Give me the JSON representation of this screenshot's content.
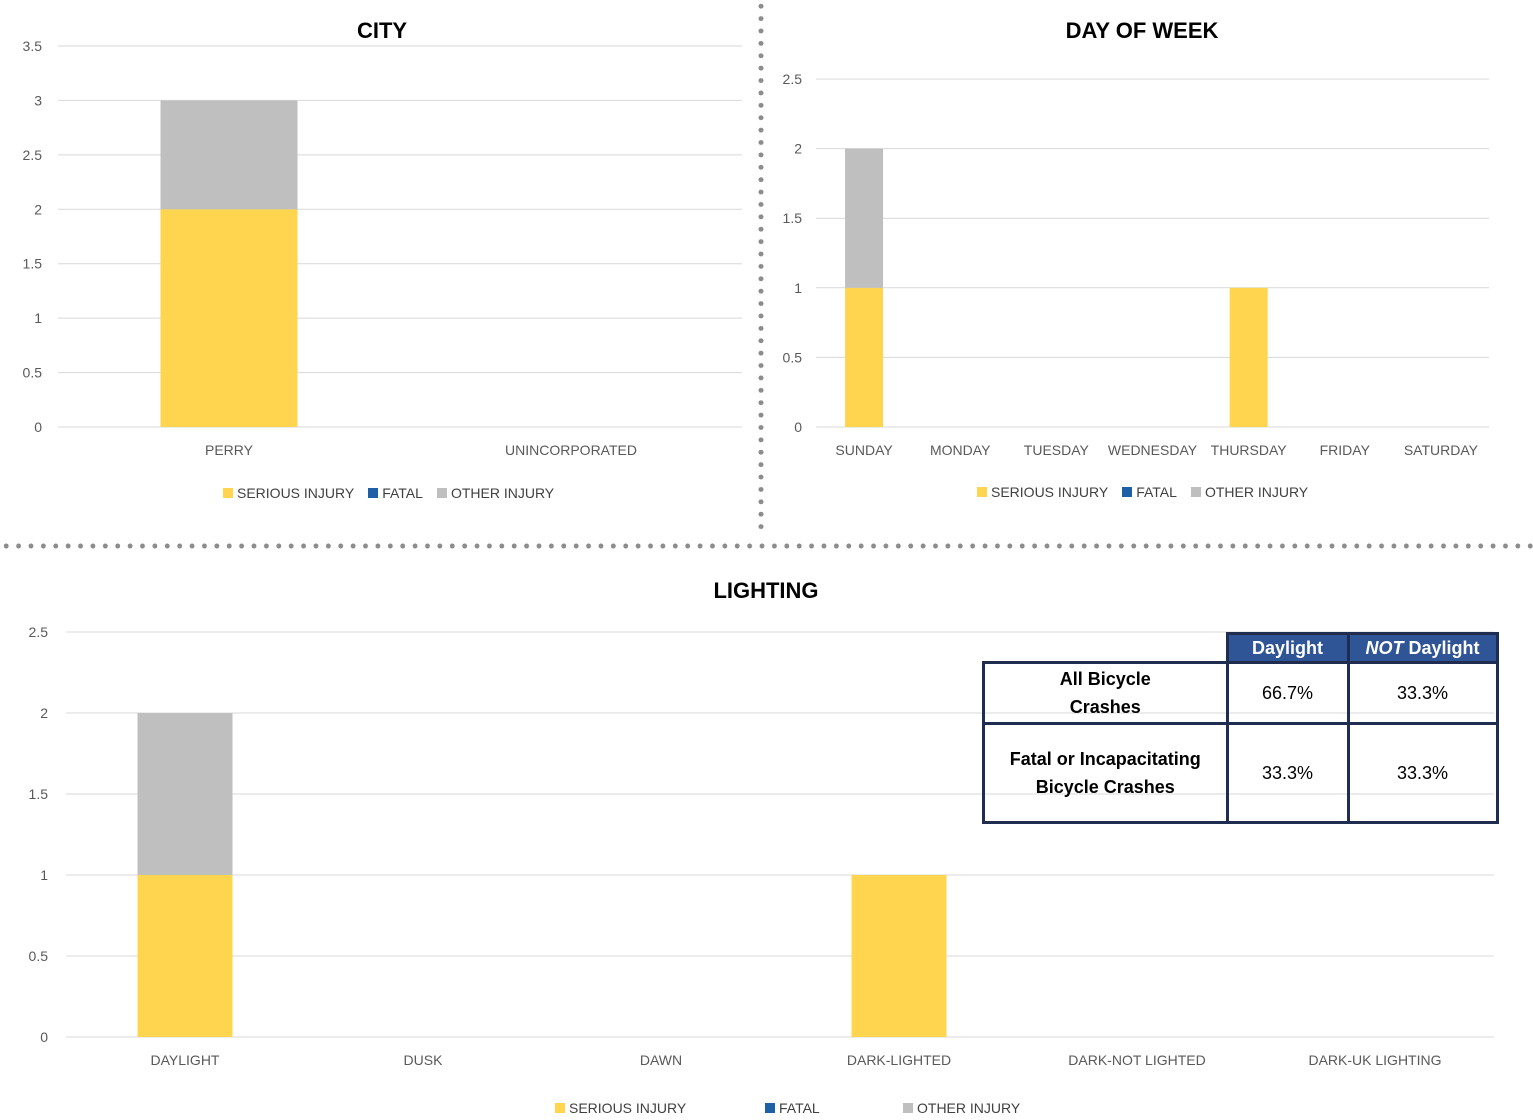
{
  "legend": {
    "serious": "SERIOUS INJURY",
    "fatal": "FATAL",
    "other": "OTHER INJURY"
  },
  "colors": {
    "serious": "#ffd54f",
    "fatal": "#1f5fa6",
    "other": "#bfbfbf",
    "grid": "#d9d9d9",
    "table_header": "#2f5597",
    "table_border": "#1f2d50"
  },
  "chart_data": [
    {
      "id": "city",
      "type": "bar",
      "stacked": true,
      "title": "CITY",
      "categories": [
        "PERRY",
        "UNINCORPORATED"
      ],
      "series": [
        {
          "name": "SERIOUS INJURY",
          "values": [
            2,
            0
          ]
        },
        {
          "name": "FATAL",
          "values": [
            0,
            0
          ]
        },
        {
          "name": "OTHER INJURY",
          "values": [
            1,
            0
          ]
        }
      ],
      "ylim": [
        0,
        3.5
      ],
      "yticks": [
        "0",
        "0.5",
        "1",
        "1.5",
        "2",
        "2.5",
        "3",
        "3.5"
      ],
      "grid": true,
      "legend": "bottom"
    },
    {
      "id": "dow",
      "type": "bar",
      "stacked": true,
      "title": "DAY OF WEEK",
      "categories": [
        "SUNDAY",
        "MONDAY",
        "TUESDAY",
        "WEDNESDAY",
        "THURSDAY",
        "FRIDAY",
        "SATURDAY"
      ],
      "series": [
        {
          "name": "SERIOUS INJURY",
          "values": [
            1,
            0,
            0,
            0,
            1,
            0,
            0
          ]
        },
        {
          "name": "FATAL",
          "values": [
            0,
            0,
            0,
            0,
            0,
            0,
            0
          ]
        },
        {
          "name": "OTHER INJURY",
          "values": [
            1,
            0,
            0,
            0,
            0,
            0,
            0
          ]
        }
      ],
      "ylim": [
        0,
        2.5
      ],
      "yticks": [
        "0",
        "0.5",
        "1",
        "1.5",
        "2",
        "2.5"
      ],
      "grid": true,
      "legend": "bottom"
    },
    {
      "id": "lighting",
      "type": "bar",
      "stacked": true,
      "title": "LIGHTING",
      "categories": [
        "DAYLIGHT",
        "DUSK",
        "DAWN",
        "DARK-LIGHTED",
        "DARK-NOT LIGHTED",
        "DARK-UK LIGHTING"
      ],
      "series": [
        {
          "name": "SERIOUS INJURY",
          "values": [
            1,
            0,
            0,
            1,
            0,
            0
          ]
        },
        {
          "name": "FATAL",
          "values": [
            0,
            0,
            0,
            0,
            0,
            0
          ]
        },
        {
          "name": "OTHER INJURY",
          "values": [
            1,
            0,
            0,
            0,
            0,
            0
          ]
        }
      ],
      "ylim": [
        0,
        2.5
      ],
      "yticks": [
        "0",
        "0.5",
        "1",
        "1.5",
        "2",
        "2.5"
      ],
      "grid": true,
      "legend": "bottom"
    }
  ],
  "table": {
    "header_daylight": "Daylight",
    "header_not": "NOT",
    "header_not_rest": " Daylight",
    "rows": [
      {
        "label_line1": "All Bicycle",
        "label_line2": "Crashes",
        "daylight": "66.7%",
        "not_daylight": "33.3%"
      },
      {
        "label_line1": "Fatal or Incapacitating",
        "label_line2": "Bicycle Crashes",
        "daylight": "33.3%",
        "not_daylight": "33.3%"
      }
    ]
  }
}
